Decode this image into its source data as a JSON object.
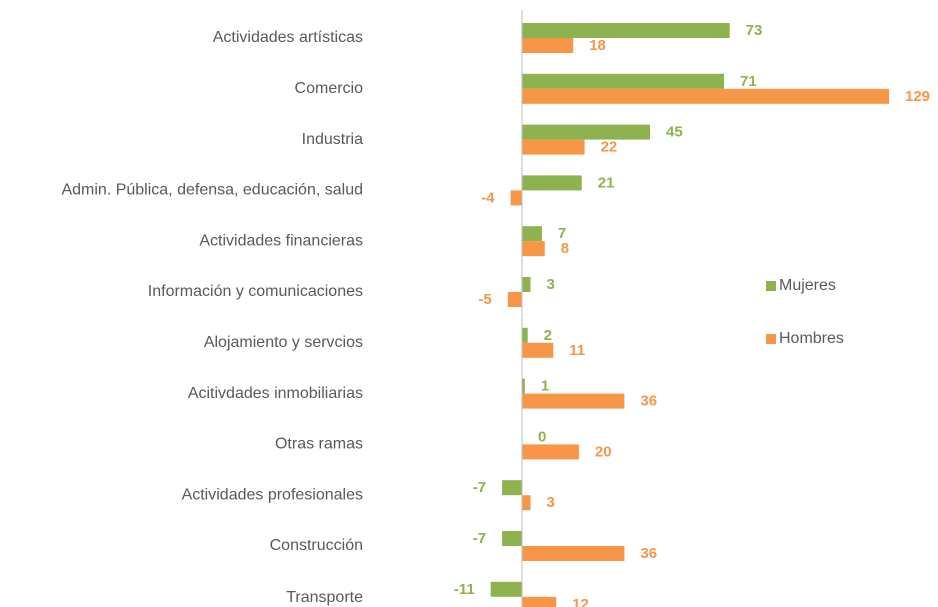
{
  "chart_data": {
    "type": "hbar",
    "categories": [
      "Actividades artísticas",
      "Comercio",
      "Industria",
      "Admin. Pública, defensa, educación, salud",
      "Actividades financieras",
      "Información y comunicaciones",
      "Alojamiento y servcios",
      "Acitivdades inmobiliarias",
      "Otras ramas",
      "Actividades profesionales",
      "Construcción",
      "Transporte"
    ],
    "series": [
      {
        "name": "Mujeres",
        "color": "#8db24e",
        "values": [
          73,
          71,
          45,
          21,
          7,
          3,
          2,
          1,
          0,
          -7,
          -7,
          -11
        ]
      },
      {
        "name": "Hombres",
        "color": "#f79646",
        "values": [
          18,
          129,
          22,
          -4,
          8,
          -5,
          11,
          36,
          20,
          3,
          36,
          12
        ]
      }
    ],
    "xlim": [
      -20,
      140
    ],
    "legend": "right"
  }
}
